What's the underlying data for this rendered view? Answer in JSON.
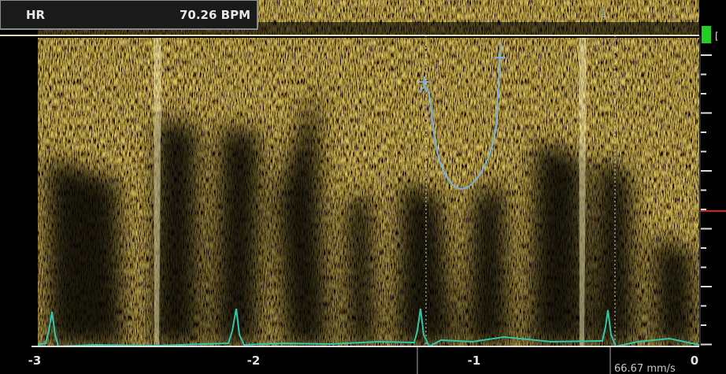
{
  "hr_box": {
    "label": "HR",
    "value": "70.26 BPM"
  },
  "marker": "1",
  "time_axis": {
    "ticks": [
      "-3",
      "-2",
      "-1",
      "0"
    ]
  },
  "sweep_speed": "66.67 mm/s"
}
